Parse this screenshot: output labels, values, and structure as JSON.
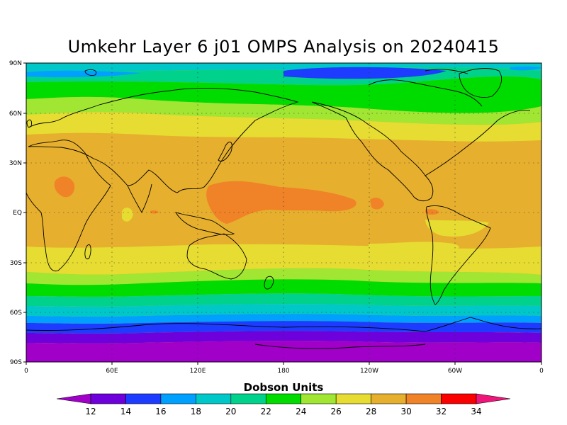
{
  "title": "Umkehr Layer 6 j01 OMPS Analysis on 20240415",
  "map": {
    "lat_labels": [
      "90N",
      "60N",
      "30N",
      "EQ",
      "30S",
      "60S",
      "90S"
    ],
    "lon_labels": [
      "0",
      "60E",
      "120E",
      "180",
      "120W",
      "60W",
      "0"
    ]
  },
  "colorbar": {
    "title": "Dobson Units",
    "levels": [
      "12",
      "14",
      "16",
      "18",
      "20",
      "22",
      "24",
      "26",
      "28",
      "30",
      "32",
      "34"
    ],
    "colors": [
      "#a000c8",
      "#6e00dc",
      "#1e3cff",
      "#00a0ff",
      "#00c8c8",
      "#00d28c",
      "#00dc00",
      "#a0e632",
      "#e6dc32",
      "#e6af2d",
      "#f08228",
      "#fa0000",
      "#f0157a"
    ]
  }
}
